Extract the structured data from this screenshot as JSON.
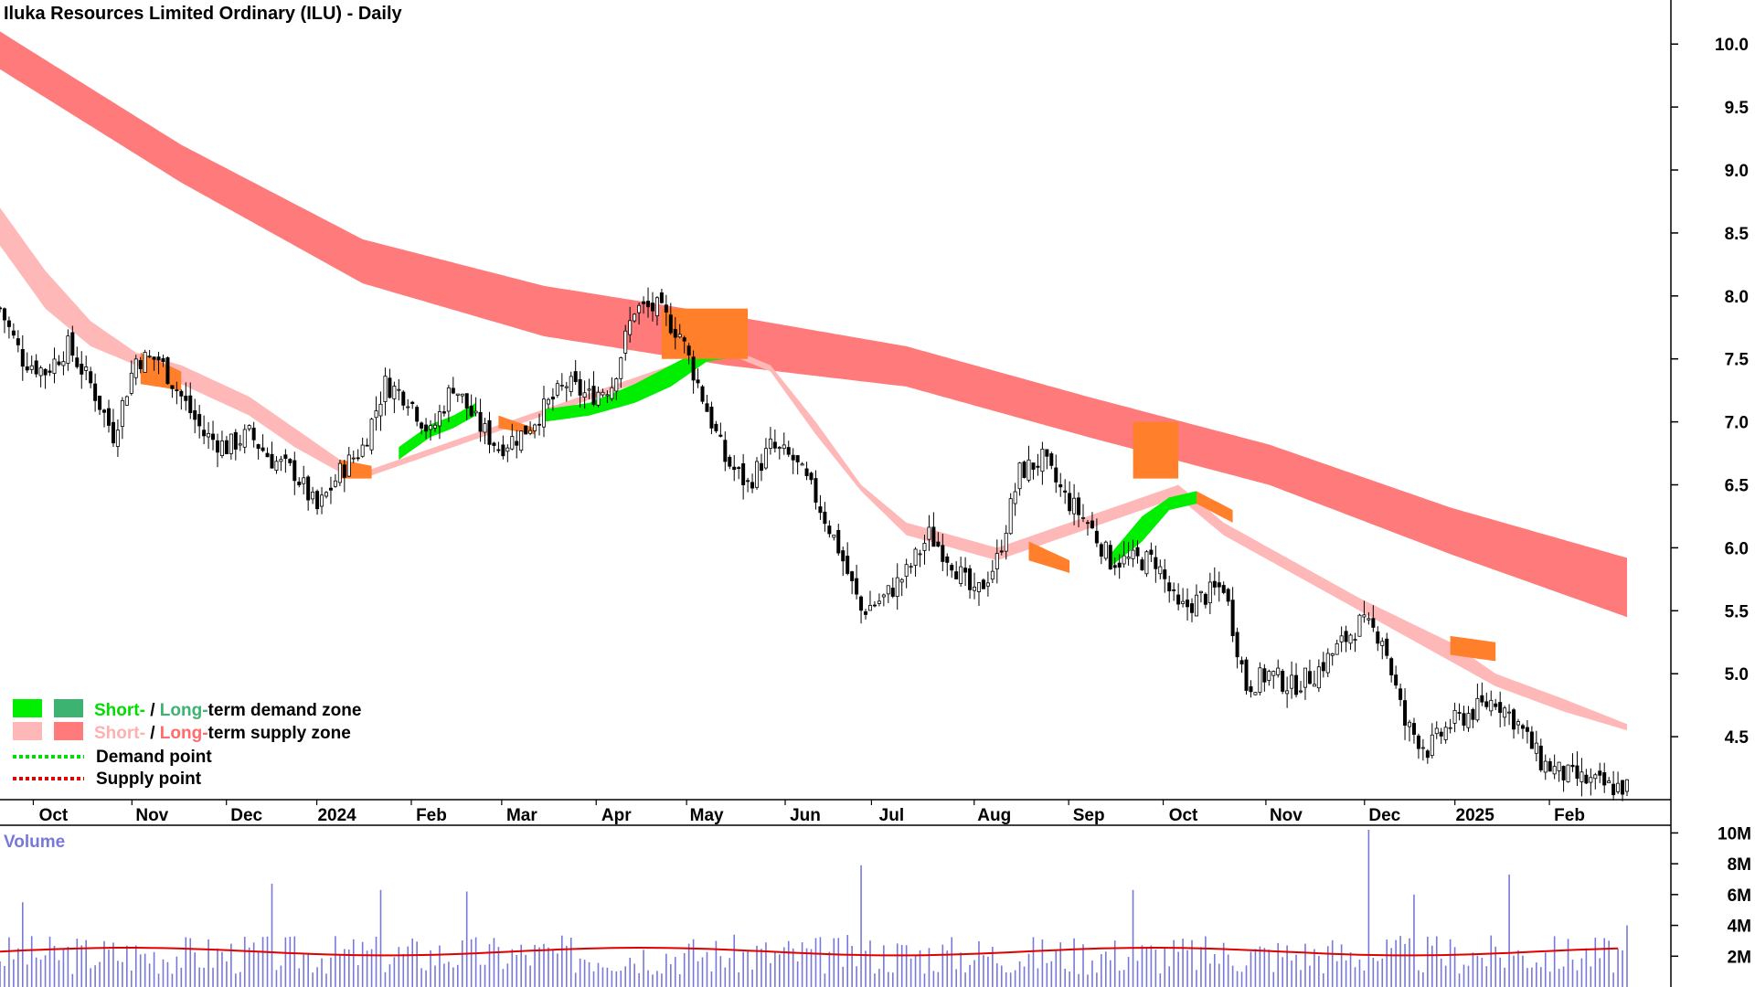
{
  "title": "Iluka Resources Limited Ordinary (ILU) - Daily",
  "colors": {
    "long_supply": "#ff7a7a",
    "short_supply": "#ffb8b8",
    "short_demand": "#00ee00",
    "long_demand": "#3cb371",
    "overlap_supply": "#ff7f2a",
    "volume_bar": "#7878d8",
    "volume_avg": "#e00000",
    "candle": "#000000"
  },
  "chart_data": [
    {
      "type": "candlestick",
      "title": "Iluka Resources Limited Ordinary (ILU) - Daily",
      "x_tick_labels": [
        "Oct",
        "Nov",
        "Dec",
        "2024",
        "Feb",
        "Mar",
        "Apr",
        "May",
        "Jun",
        "Jul",
        "Aug",
        "Sep",
        "Oct",
        "Nov",
        "Dec",
        "2025",
        "Feb"
      ],
      "y_tick_labels": [
        "10.0",
        "9.5",
        "9.0",
        "8.5",
        "8.0",
        "7.5",
        "7.0",
        "6.5",
        "6.0",
        "5.5",
        "5.0",
        "4.5"
      ],
      "y_ticks": [
        10.0,
        9.5,
        9.0,
        8.5,
        8.0,
        7.5,
        7.0,
        6.5,
        6.0,
        5.5,
        5.0,
        4.5
      ],
      "ylim": [
        4.0,
        10.35
      ],
      "close_path": {
        "x": [
          0,
          5,
          10,
          15,
          20,
          25,
          30,
          35,
          40,
          45,
          50,
          55,
          60,
          65,
          70,
          75,
          80,
          85,
          90,
          95,
          100,
          105,
          110,
          115,
          120,
          125,
          130,
          135,
          140,
          145,
          150,
          155,
          160,
          165,
          170,
          175,
          180,
          185,
          190,
          195,
          200,
          205,
          210,
          215,
          220,
          225,
          230,
          235,
          240,
          245,
          250,
          255,
          260,
          265,
          270,
          275,
          280,
          285,
          290,
          295,
          300,
          305,
          310,
          315,
          320,
          325,
          330,
          335,
          340,
          345,
          350,
          355,
          359
        ],
        "y": [
          7.9,
          7.5,
          7.4,
          7.6,
          7.3,
          6.9,
          7.5,
          7.5,
          7.2,
          6.9,
          6.8,
          6.9,
          6.7,
          6.6,
          6.3,
          6.6,
          6.8,
          7.3,
          7.2,
          6.9,
          7.3,
          7.0,
          6.8,
          6.9,
          7.1,
          7.3,
          7.2,
          7.3,
          7.9,
          7.9,
          7.7,
          7.2,
          6.7,
          6.5,
          6.8,
          6.7,
          6.4,
          6.0,
          5.5,
          5.6,
          5.8,
          6.1,
          5.9,
          5.6,
          5.9,
          6.6,
          6.7,
          6.4,
          6.2,
          5.9,
          5.9,
          5.9,
          5.5,
          5.6,
          5.7,
          4.9,
          5.0,
          4.9,
          5.0,
          5.2,
          5.4,
          5.3,
          4.6,
          4.4,
          4.6,
          4.7,
          4.8,
          4.6,
          4.3,
          4.2,
          4.15,
          4.1,
          4.1
        ]
      },
      "long_term_supply_zone": {
        "x": [
          0,
          40,
          80,
          120,
          160,
          200,
          240,
          280,
          320,
          359
        ],
        "upper": [
          10.1,
          9.2,
          8.45,
          8.08,
          7.85,
          7.6,
          7.2,
          6.82,
          6.32,
          5.92
        ],
        "lower": [
          9.8,
          8.9,
          8.1,
          7.68,
          7.45,
          7.28,
          6.88,
          6.5,
          5.95,
          5.45
        ]
      },
      "short_term_supply_zone": {
        "x": [
          0,
          10,
          20,
          30,
          40,
          55,
          65,
          75,
          80,
          160,
          170,
          180,
          190,
          200,
          220,
          260,
          270,
          280,
          300,
          320,
          330,
          345,
          359
        ],
        "upper": [
          8.7,
          8.2,
          7.8,
          7.55,
          7.45,
          7.2,
          6.95,
          6.7,
          6.6,
          7.6,
          7.45,
          7.0,
          6.5,
          6.2,
          6.0,
          6.5,
          6.2,
          6.0,
          5.6,
          5.25,
          5.0,
          4.8,
          4.6
        ],
        "lower": [
          8.4,
          7.9,
          7.6,
          7.45,
          7.3,
          7.05,
          6.8,
          6.6,
          6.55,
          7.55,
          7.4,
          6.9,
          6.45,
          6.1,
          5.9,
          6.4,
          6.1,
          5.9,
          5.5,
          5.1,
          4.9,
          4.7,
          4.55
        ]
      },
      "demand_zones_short": [
        {
          "x": [
            88,
            95,
            100,
            105
          ],
          "upper": [
            6.8,
            6.98,
            7.05,
            7.15
          ],
          "lower": [
            6.7,
            6.88,
            6.95,
            7.05
          ]
        },
        {
          "x": [
            120,
            130,
            140,
            148,
            156,
            164
          ],
          "upper": [
            7.1,
            7.15,
            7.3,
            7.45,
            7.6,
            7.65
          ],
          "lower": [
            7.0,
            7.05,
            7.15,
            7.28,
            7.48,
            7.52
          ]
        },
        {
          "x": [
            245,
            252,
            258,
            264
          ],
          "upper": [
            5.95,
            6.25,
            6.4,
            6.45
          ],
          "lower": [
            5.85,
            6.05,
            6.3,
            6.35
          ]
        }
      ],
      "supply_points_overlap": [
        {
          "x": [
            31,
            40
          ],
          "upper": [
            7.55,
            7.4
          ],
          "lower": [
            7.3,
            7.25
          ]
        },
        {
          "x": [
            75,
            82
          ],
          "upper": [
            6.7,
            6.65
          ],
          "lower": [
            6.55,
            6.55
          ]
        },
        {
          "x": [
            110,
            118
          ],
          "upper": [
            7.05,
            6.95
          ],
          "lower": [
            6.95,
            6.9
          ]
        },
        {
          "x": [
            146,
            165
          ],
          "upper": [
            7.9,
            7.9
          ],
          "lower": [
            7.5,
            7.5
          ]
        },
        {
          "x": [
            227,
            236
          ],
          "upper": [
            6.05,
            5.9
          ],
          "lower": [
            5.9,
            5.8
          ]
        },
        {
          "x": [
            250,
            260
          ],
          "upper": [
            7.0,
            7.0
          ],
          "lower": [
            6.55,
            6.55
          ]
        },
        {
          "x": [
            264,
            272
          ],
          "upper": [
            6.45,
            6.3
          ],
          "lower": [
            6.35,
            6.2
          ]
        },
        {
          "x": [
            320,
            330
          ],
          "upper": [
            5.3,
            5.25
          ],
          "lower": [
            5.15,
            5.1
          ]
        }
      ]
    },
    {
      "type": "bar",
      "title": "Volume",
      "y_tick_labels": [
        "10M",
        "8M",
        "6M",
        "4M",
        "2M"
      ],
      "y_ticks": [
        10,
        8,
        6,
        4,
        2
      ],
      "ylim": [
        0,
        10.5
      ],
      "unit": "M",
      "average_level": 2.3,
      "spikes": [
        {
          "x": 5,
          "value": 5.5
        },
        {
          "x": 60,
          "value": 6.7
        },
        {
          "x": 84,
          "value": 6.3
        },
        {
          "x": 103,
          "value": 6.2
        },
        {
          "x": 190,
          "value": 7.9
        },
        {
          "x": 250,
          "value": 6.3
        },
        {
          "x": 302,
          "value": 10.2
        },
        {
          "x": 312,
          "value": 6.0
        },
        {
          "x": 333,
          "value": 7.3
        },
        {
          "x": 359,
          "value": 4.0
        }
      ]
    }
  ],
  "legend": {
    "row1_short": "Short-",
    "row1_sep": " / ",
    "row1_long": "Long-",
    "row1_rest": "term demand zone",
    "row2_short": "Short-",
    "row2_sep": " / ",
    "row2_long": "Long-",
    "row2_rest": "term supply zone",
    "row3": "Demand point",
    "row4": "Supply point"
  }
}
